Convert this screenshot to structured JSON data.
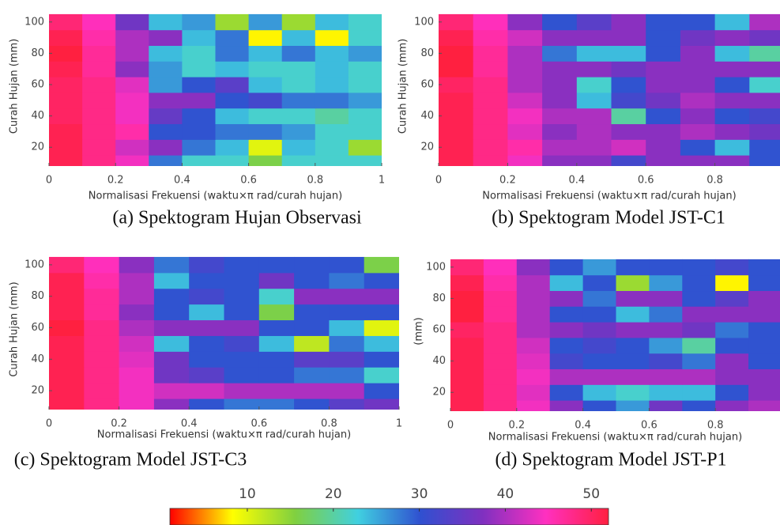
{
  "chart_data": [
    {
      "type": "heatmap",
      "caption": "(a) Spektogram Hujan Observasi",
      "xlabel": "Normalisasi Frekuensi (waktu×π rad/curah hujan)",
      "ylabel": "Curah Hujan (mm)",
      "x": [
        0.05,
        0.15,
        0.25,
        0.35,
        0.45,
        0.55,
        0.65,
        0.75,
        0.85,
        0.95
      ],
      "y": [
        10,
        20,
        30,
        40,
        50,
        60,
        70,
        80,
        90,
        100
      ],
      "xlim": [
        0,
        1
      ],
      "ylim": [
        8,
        110
      ],
      "xticks": [
        0,
        0.2,
        0.4,
        0.6,
        0.8,
        1
      ],
      "yticks": [
        20,
        40,
        60,
        80,
        100
      ],
      "values": [
        [
          51,
          48,
          44,
          28,
          22,
          22,
          16,
          22,
          22,
          22
        ],
        [
          51,
          48,
          42,
          38,
          28,
          24,
          10,
          24,
          22,
          14
        ],
        [
          51,
          48,
          46,
          30,
          30,
          28,
          28,
          26,
          22,
          22
        ],
        [
          50,
          48,
          44,
          35,
          30,
          24,
          22,
          22,
          20,
          22
        ],
        [
          50,
          48,
          44,
          38,
          38,
          30,
          32,
          28,
          28,
          26
        ],
        [
          50,
          48,
          43,
          26,
          30,
          34,
          24,
          22,
          24,
          22
        ],
        [
          51,
          47,
          38,
          26,
          22,
          24,
          22,
          22,
          24,
          22
        ],
        [
          52,
          47,
          40,
          24,
          22,
          28,
          24,
          28,
          24,
          26
        ],
        [
          51,
          46,
          40,
          38,
          24,
          28,
          8,
          24,
          8,
          22
        ],
        [
          49,
          45,
          36,
          24,
          26,
          14,
          26,
          14,
          24,
          22
        ]
      ]
    },
    {
      "type": "heatmap",
      "caption": "(b) Spektogram Model JST-C1",
      "xlabel": "Normalisasi Frekuensi (waktu×π rad/curah hujan)",
      "ylabel": "Curah Hujan (mm)",
      "x": [
        0.05,
        0.15,
        0.25,
        0.35,
        0.45,
        0.55,
        0.65,
        0.75,
        0.85,
        0.95
      ],
      "y": [
        10,
        20,
        30,
        40,
        50,
        60,
        70,
        80,
        90,
        100
      ],
      "xlim": [
        0,
        1
      ],
      "ylim": [
        8,
        110
      ],
      "xticks": [
        0,
        0.2,
        0.4,
        0.6,
        0.8,
        1
      ],
      "yticks": [
        20,
        40,
        60,
        80,
        100
      ],
      "values": [
        [
          51,
          48,
          44,
          38,
          38,
          32,
          38,
          38,
          38,
          30
        ],
        [
          51,
          48,
          46,
          40,
          40,
          42,
          38,
          30,
          24,
          30
        ],
        [
          51,
          48,
          43,
          38,
          40,
          38,
          38,
          40,
          38,
          36
        ],
        [
          51,
          48,
          44,
          40,
          40,
          20,
          30,
          38,
          30,
          32
        ],
        [
          51,
          48,
          42,
          38,
          24,
          32,
          36,
          40,
          38,
          38
        ],
        [
          50,
          48,
          40,
          38,
          22,
          30,
          38,
          38,
          30,
          22
        ],
        [
          52,
          47,
          40,
          38,
          38,
          36,
          38,
          38,
          38,
          38
        ],
        [
          52,
          47,
          40,
          28,
          24,
          24,
          30,
          38,
          24,
          20
        ],
        [
          51,
          46,
          42,
          38,
          38,
          38,
          30,
          36,
          38,
          36
        ],
        [
          49,
          45,
          38,
          30,
          34,
          38,
          30,
          30,
          24,
          40
        ]
      ]
    },
    {
      "type": "heatmap",
      "caption": "(c) Spektogram Model JST-C3",
      "xlabel": "Normalisasi Frekuensi (waktu×π rad/curah hujan)",
      "ylabel": "Curah Hujan (mm)",
      "x": [
        0.05,
        0.15,
        0.25,
        0.35,
        0.45,
        0.55,
        0.65,
        0.75,
        0.85,
        0.95
      ],
      "y": [
        10,
        20,
        30,
        40,
        50,
        60,
        70,
        80,
        90,
        100
      ],
      "xlim": [
        0,
        1
      ],
      "ylim": [
        8,
        110
      ],
      "xticks": [
        0,
        0.2,
        0.4,
        0.6,
        0.8,
        1
      ],
      "yticks": [
        20,
        40,
        60,
        80,
        100
      ],
      "values": [
        [
          51,
          48,
          44,
          38,
          30,
          28,
          28,
          30,
          34,
          36
        ],
        [
          51,
          48,
          44,
          42,
          42,
          40,
          40,
          40,
          40,
          30
        ],
        [
          51,
          48,
          44,
          36,
          34,
          30,
          30,
          28,
          28,
          22
        ],
        [
          51,
          48,
          43,
          36,
          30,
          30,
          30,
          34,
          34,
          30
        ],
        [
          51,
          48,
          42,
          24,
          30,
          32,
          24,
          12,
          28,
          24
        ],
        [
          52,
          48,
          40,
          38,
          38,
          38,
          30,
          30,
          24,
          10
        ],
        [
          51,
          47,
          38,
          30,
          24,
          30,
          16,
          30,
          30,
          30
        ],
        [
          51,
          47,
          40,
          30,
          32,
          30,
          22,
          38,
          38,
          38
        ],
        [
          51,
          46,
          40,
          24,
          30,
          30,
          36,
          30,
          28,
          30
        ],
        [
          49,
          45,
          38,
          28,
          32,
          30,
          30,
          30,
          30,
          16
        ]
      ]
    },
    {
      "type": "heatmap",
      "caption": "(d) Spektogram Model JST-P1",
      "xlabel": "Normalisasi Frekuensi (waktu×π rad/curah hujan)",
      "ylabel": "(mm)",
      "x": [
        0.05,
        0.15,
        0.25,
        0.35,
        0.45,
        0.55,
        0.65,
        0.75,
        0.85,
        0.95
      ],
      "y": [
        10,
        20,
        30,
        40,
        50,
        60,
        70,
        80,
        90,
        100
      ],
      "xlim": [
        0,
        1
      ],
      "ylim": [
        8,
        110
      ],
      "xticks": [
        0,
        0.2,
        0.4,
        0.6,
        0.8
      ],
      "yticks": [
        20,
        40,
        60,
        80,
        100
      ],
      "values": [
        [
          51,
          48,
          44,
          38,
          30,
          26,
          36,
          30,
          38,
          40
        ],
        [
          51,
          48,
          43,
          30,
          24,
          22,
          24,
          24,
          30,
          38
        ],
        [
          51,
          48,
          44,
          40,
          40,
          40,
          40,
          40,
          38,
          38
        ],
        [
          51,
          48,
          43,
          32,
          30,
          30,
          32,
          28,
          38,
          30
        ],
        [
          51,
          48,
          42,
          30,
          32,
          30,
          26,
          20,
          30,
          30
        ],
        [
          50,
          48,
          40,
          38,
          36,
          38,
          38,
          36,
          28,
          30
        ],
        [
          52,
          47,
          40,
          30,
          30,
          24,
          28,
          38,
          38,
          38
        ],
        [
          52,
          47,
          40,
          38,
          28,
          38,
          38,
          30,
          34,
          38
        ],
        [
          51,
          46,
          40,
          24,
          30,
          14,
          26,
          30,
          8,
          30
        ],
        [
          49,
          45,
          38,
          30,
          26,
          30,
          30,
          30,
          32,
          30
        ]
      ]
    }
  ],
  "colorbar": {
    "lim": [
      1,
      52
    ],
    "ticks": [
      10,
      20,
      30,
      40,
      50
    ],
    "colormap": [
      "#ff0000",
      "#ffff00",
      "#80d040",
      "#40d0e0",
      "#3050d0",
      "#8030c0",
      "#ff30c0",
      "#ff2040"
    ]
  }
}
